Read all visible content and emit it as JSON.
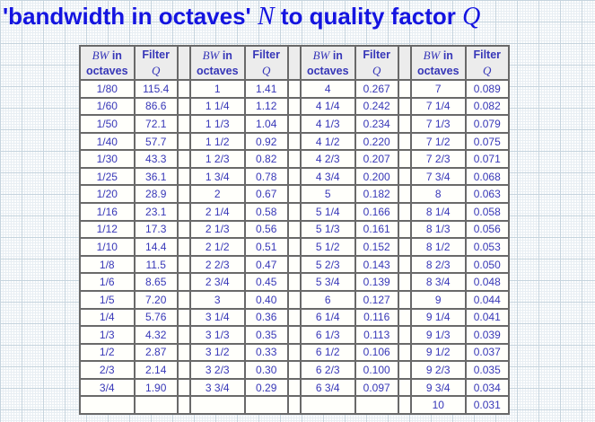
{
  "page_title": {
    "prefix": "'bandwidth in octaves' ",
    "var_n": "N",
    "middle": " to quality factor ",
    "var_q": "Q"
  },
  "colors": {
    "title_blue": "#1414e0",
    "table_text_blue": "#3737b8",
    "header_bg": "#ececec",
    "cell_bg": "#fffffb",
    "border_gray": "#696969",
    "grid_major": "#c6d4de",
    "grid_fine": "#e8eef3"
  },
  "chart_data": {
    "type": "table",
    "title": "'bandwidth in octaves' N to quality factor Q",
    "header": {
      "bw_var": "BW",
      "bw_after": " in",
      "bw_line2": "octaves",
      "q_line1": "Filter",
      "q_var": "Q"
    },
    "column_headers_per_group": [
      "BW in octaves",
      "Filter Q"
    ],
    "groups": [
      {
        "rows": [
          [
            "1/80",
            "115.4"
          ],
          [
            "1/60",
            "86.6"
          ],
          [
            "1/50",
            "72.1"
          ],
          [
            "1/40",
            "57.7"
          ],
          [
            "1/30",
            "43.3"
          ],
          [
            "1/25",
            "36.1"
          ],
          [
            "1/20",
            "28.9"
          ],
          [
            "1/16",
            "23.1"
          ],
          [
            "1/12",
            "17.3"
          ],
          [
            "1/10",
            "14.4"
          ],
          [
            "1/8",
            "11.5"
          ],
          [
            "1/6",
            "8.65"
          ],
          [
            "1/5",
            "7.20"
          ],
          [
            "1/4",
            "5.76"
          ],
          [
            "1/3",
            "4.32"
          ],
          [
            "1/2",
            "2.87"
          ],
          [
            "2/3",
            "2.14"
          ],
          [
            "3/4",
            "1.90"
          ],
          [
            "",
            ""
          ]
        ]
      },
      {
        "rows": [
          [
            "1",
            "1.41"
          ],
          [
            "1 1/4",
            "1.12"
          ],
          [
            "1 1/3",
            "1.04"
          ],
          [
            "1 1/2",
            "0.92"
          ],
          [
            "1 2/3",
            "0.82"
          ],
          [
            "1 3/4",
            "0.78"
          ],
          [
            "2",
            "0.67"
          ],
          [
            "2 1/4",
            "0.58"
          ],
          [
            "2 1/3",
            "0.56"
          ],
          [
            "2 1/2",
            "0.51"
          ],
          [
            "2 2/3",
            "0.47"
          ],
          [
            "2 3/4",
            "0.45"
          ],
          [
            "3",
            "0.40"
          ],
          [
            "3 1/4",
            "0.36"
          ],
          [
            "3 1/3",
            "0.35"
          ],
          [
            "3 1/2",
            "0.33"
          ],
          [
            "3 2/3",
            "0.30"
          ],
          [
            "3 3/4",
            "0.29"
          ],
          [
            "",
            ""
          ]
        ]
      },
      {
        "rows": [
          [
            "4",
            "0.267"
          ],
          [
            "4 1/4",
            "0.242"
          ],
          [
            "4 1/3",
            "0.234"
          ],
          [
            "4 1/2",
            "0.220"
          ],
          [
            "4 2/3",
            "0.207"
          ],
          [
            "4 3/4",
            "0.200"
          ],
          [
            "5",
            "0.182"
          ],
          [
            "5 1/4",
            "0.166"
          ],
          [
            "5 1/3",
            "0.161"
          ],
          [
            "5 1/2",
            "0.152"
          ],
          [
            "5 2/3",
            "0.143"
          ],
          [
            "5 3/4",
            "0.139"
          ],
          [
            "6",
            "0.127"
          ],
          [
            "6 1/4",
            "0.116"
          ],
          [
            "6 1/3",
            "0.113"
          ],
          [
            "6 1/2",
            "0.106"
          ],
          [
            "6 2/3",
            "0.100"
          ],
          [
            "6 3/4",
            "0.097"
          ],
          [
            "",
            ""
          ]
        ]
      },
      {
        "rows": [
          [
            "7",
            "0.089"
          ],
          [
            "7 1/4",
            "0.082"
          ],
          [
            "7 1/3",
            "0.079"
          ],
          [
            "7 1/2",
            "0.075"
          ],
          [
            "7 2/3",
            "0.071"
          ],
          [
            "7 3/4",
            "0.068"
          ],
          [
            "8",
            "0.063"
          ],
          [
            "8 1/4",
            "0.058"
          ],
          [
            "8 1/3",
            "0.056"
          ],
          [
            "8 1/2",
            "0.053"
          ],
          [
            "8 2/3",
            "0.050"
          ],
          [
            "8 3/4",
            "0.048"
          ],
          [
            "9",
            "0.044"
          ],
          [
            "9 1/4",
            "0.041"
          ],
          [
            "9 1/3",
            "0.039"
          ],
          [
            "9 1/2",
            "0.037"
          ],
          [
            "9 2/3",
            "0.035"
          ],
          [
            "9 3/4",
            "0.034"
          ],
          [
            "10",
            "0.031"
          ]
        ]
      }
    ]
  }
}
